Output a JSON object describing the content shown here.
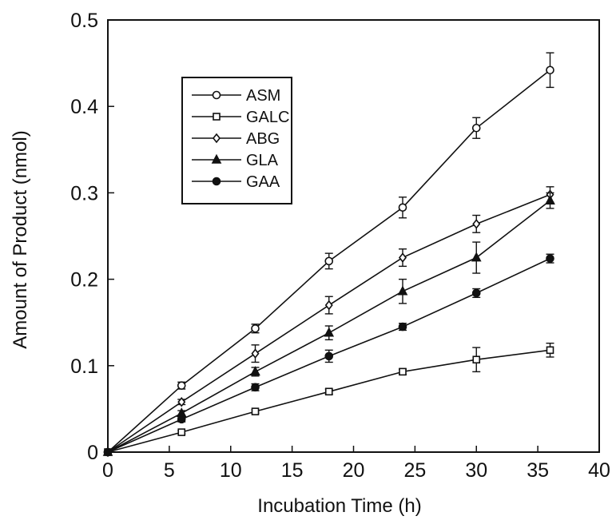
{
  "chart_data": {
    "type": "line",
    "xlabel": "Incubation Time (h)",
    "ylabel": "Amount of Product (nmol)",
    "xlim": [
      0,
      40
    ],
    "ylim": [
      0,
      0.5
    ],
    "xticks": [
      "0",
      "5",
      "10",
      "15",
      "20",
      "25",
      "30",
      "35",
      "40"
    ],
    "yticks": [
      "0",
      "0.1",
      "0.2",
      "0.3",
      "0.4",
      "0.5"
    ],
    "grid": false,
    "legend_position": "top-left",
    "x": [
      0,
      6,
      12,
      18,
      24,
      30,
      36
    ],
    "series": [
      {
        "name": "ASM",
        "marker": "open-circle",
        "values": [
          0,
          0.077,
          0.143,
          0.221,
          0.283,
          0.375,
          0.442
        ],
        "errors": [
          0,
          0.004,
          0.005,
          0.009,
          0.012,
          0.012,
          0.02
        ]
      },
      {
        "name": "GALC",
        "marker": "open-square",
        "values": [
          0,
          0.023,
          0.047,
          0.07,
          0.093,
          0.107,
          0.118
        ],
        "errors": [
          0,
          0.002,
          0.002,
          0.003,
          0.003,
          0.014,
          0.008
        ]
      },
      {
        "name": "ABG",
        "marker": "open-diamond",
        "values": [
          0,
          0.058,
          0.114,
          0.17,
          0.225,
          0.264,
          0.298
        ],
        "errors": [
          0,
          0.003,
          0.01,
          0.01,
          0.01,
          0.01,
          0.009
        ]
      },
      {
        "name": "GLA",
        "marker": "filled-triangle",
        "values": [
          0,
          0.045,
          0.093,
          0.138,
          0.186,
          0.225,
          0.291
        ],
        "errors": [
          0,
          0.003,
          0.005,
          0.008,
          0.014,
          0.018,
          0.009
        ]
      },
      {
        "name": "GAA",
        "marker": "filled-circle",
        "values": [
          0,
          0.038,
          0.075,
          0.111,
          0.145,
          0.184,
          0.224
        ],
        "errors": [
          0,
          0.003,
          0.004,
          0.007,
          0.004,
          0.005,
          0.005
        ]
      }
    ]
  }
}
